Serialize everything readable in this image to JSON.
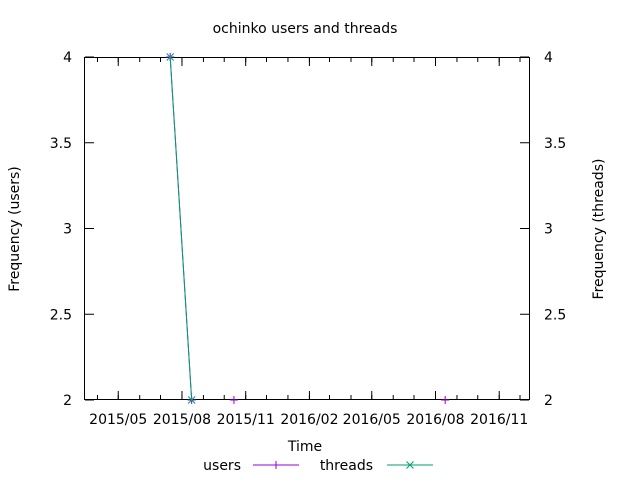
{
  "chart_data": {
    "type": "line",
    "title": "ochinko users and threads",
    "xlabel": "Time",
    "ylabel": "Frequency (users)",
    "y2label": "Frequency (threads)",
    "x_ticks": [
      "2015/05",
      "2015/08",
      "2015/11",
      "2016/02",
      "2016/05",
      "2016/08",
      "2016/11"
    ],
    "xlim": [
      "2015/03/14",
      "2016/12/14"
    ],
    "ylim": [
      2,
      4
    ],
    "y2lim": [
      2,
      4
    ],
    "y_ticks": [
      2,
      2.5,
      3,
      3.5,
      4
    ],
    "y_tick_labels": [
      "2",
      "2.5",
      "3",
      "3.5",
      "4"
    ],
    "grid": false,
    "legend_position": "bottom-center",
    "series": [
      {
        "name": "users",
        "color": "#9400d3",
        "marker": "plus",
        "x": [
          "2015/07/15",
          "2015/08/15",
          "2015/10/15",
          "2016/08/15"
        ],
        "y": [
          4,
          2,
          2,
          2
        ]
      },
      {
        "name": "threads",
        "color": "#009e73",
        "marker": "cross",
        "x": [
          "2015/07/15",
          "2015/08/15"
        ],
        "y": [
          4,
          2
        ]
      }
    ]
  }
}
